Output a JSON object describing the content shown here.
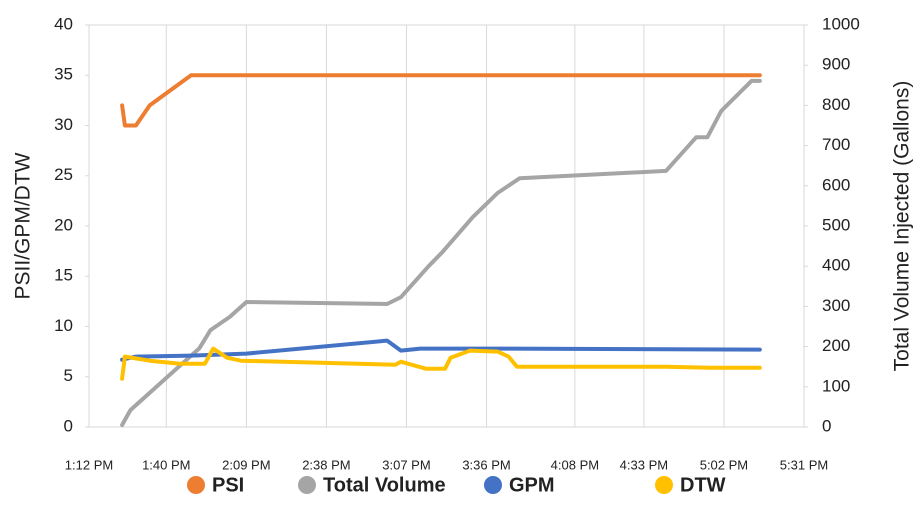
{
  "chart_data": {
    "type": "line",
    "y_label": "PSII/GPM/DTW",
    "y2_label": "Total Volume Injected (Gallons)",
    "xlim": [
      "1:12 PM",
      "5:31 PM"
    ],
    "xticks": [
      "1:12 PM",
      "1:40 PM",
      "2:09 PM",
      "2:38 PM",
      "3:07 PM",
      "3:36 PM",
      "4:08 PM",
      "4:33 PM",
      "5:02 PM",
      "5:31 PM"
    ],
    "ylim": [
      0,
      40
    ],
    "yticks": [
      0,
      5,
      10,
      15,
      20,
      25,
      30,
      35,
      40
    ],
    "y2lim": [
      0,
      1000
    ],
    "y2ticks": [
      0,
      100,
      200,
      300,
      400,
      500,
      600,
      700,
      800,
      900,
      1000
    ],
    "xgrid": true,
    "legend": "bottom",
    "series": [
      {
        "name": "PSI",
        "color": "#ed7d31",
        "x": [
          "1:24 PM",
          "1:25 PM",
          "1:29 PM",
          "1:34 PM",
          "1:49 PM",
          "5:15 PM"
        ],
        "values": [
          32,
          30,
          30,
          32,
          35,
          35
        ]
      },
      {
        "name": "Total Volume",
        "color": "#a5a5a5",
        "axis": "y2",
        "x": [
          "1:24 PM",
          "1:27 PM",
          "1:52 PM",
          "1:56 PM",
          "2:03 PM",
          "2:09 PM",
          "3:00 PM",
          "3:05 PM",
          "3:15 PM",
          "3:20 PM",
          "3:31 PM",
          "3:40 PM",
          "3:48 PM",
          "4:41 PM",
          "4:52 PM",
          "4:56 PM",
          "5:01 PM",
          "5:12 PM",
          "5:15 PM"
        ],
        "values": [
          5,
          42,
          196,
          241,
          274,
          311,
          306,
          323,
          400,
          435,
          522,
          582,
          619,
          637,
          721,
          721,
          786,
          861,
          861
        ]
      },
      {
        "name": "GPM",
        "color": "#4472c4",
        "x": [
          "1:24 PM",
          "1:29 PM",
          "1:49 PM",
          "2:09 PM",
          "3:00 PM",
          "3:05 PM",
          "3:12 PM",
          "3:40 PM",
          "5:15 PM"
        ],
        "values": [
          6.7,
          7.0,
          7.1,
          7.3,
          8.6,
          7.6,
          7.8,
          7.8,
          7.7
        ]
      },
      {
        "name": "DTW",
        "color": "#ffc000",
        "x": [
          "1:24 PM",
          "1:25 PM",
          "1:34 PM",
          "1:45 PM",
          "1:54 PM",
          "1:57 PM",
          "2:02 PM",
          "2:07 PM",
          "3:03 PM",
          "3:05 PM",
          "3:14 PM",
          "3:21 PM",
          "3:23 PM",
          "3:30 PM",
          "3:40 PM",
          "3:44 PM",
          "3:47 PM",
          "4:41 PM",
          "4:57 PM",
          "5:15 PM"
        ],
        "values": [
          4.8,
          7.0,
          6.6,
          6.3,
          6.3,
          7.8,
          6.9,
          6.6,
          6.2,
          6.5,
          5.8,
          5.8,
          6.9,
          7.6,
          7.5,
          7.0,
          6.0,
          6.0,
          5.9,
          5.9
        ]
      }
    ]
  }
}
